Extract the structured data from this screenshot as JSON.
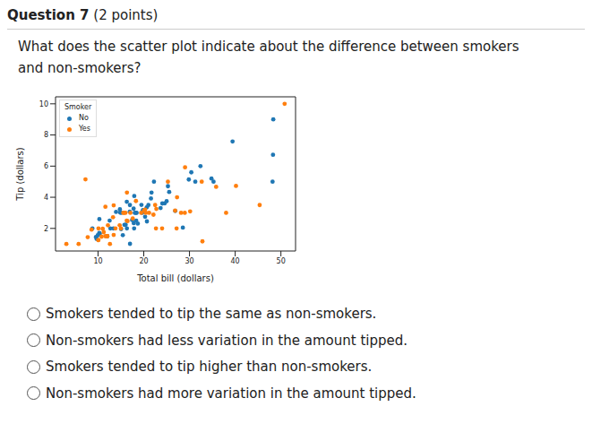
{
  "header": {
    "title": "Question 7",
    "points": "(2 points)"
  },
  "question": "What does the scatter plot indicate about the difference between smokers and non-smokers?",
  "options": [
    "Smokers tended to tip the same as non-smokers.",
    "Non-smokers had less variation in the amount tipped.",
    "Smokers tended to tip higher than non-smokers.",
    "Non-smokers had more variation in the amount tipped."
  ],
  "chart_data": {
    "type": "scatter",
    "x_label": "Total bill (dollars)",
    "y_label": "Tip (dollars)",
    "legend_title": "Smoker",
    "legend": "upper left",
    "xlim": [
      0.7,
      53.2
    ],
    "ylim": [
      0.55,
      10.45
    ],
    "xticks": [
      10,
      20,
      30,
      40,
      50
    ],
    "yticks": [
      2,
      4,
      6,
      8,
      10
    ],
    "series": [
      {
        "name": "No",
        "color": "#1f77b4",
        "marker": "circle",
        "x": [
          16.99,
          10.34,
          21.01,
          23.68,
          24.59,
          25.29,
          8.77,
          26.88,
          15.04,
          14.78,
          10.27,
          35.26,
          15.42,
          18.43,
          14.83,
          21.58,
          10.33,
          16.29,
          16.97,
          20.65,
          17.92,
          20.29,
          15.77,
          39.42,
          19.82,
          17.81,
          13.37,
          12.69,
          21.7,
          19.65,
          9.55,
          18.35,
          15.06,
          20.69,
          17.78,
          24.06,
          16.31,
          16.93,
          18.69,
          31.27,
          16.04,
          17.46,
          13.94,
          9.68,
          30.4,
          18.29,
          22.23,
          32.4,
          28.55,
          18.04,
          12.54,
          10.29,
          34.81,
          9.94,
          25.56,
          19.49,
          48.27,
          20.08,
          48.17,
          48.33,
          29.85,
          25.0,
          12.03,
          17.89
        ],
        "values": [
          1.01,
          1.66,
          3.5,
          3.31,
          3.61,
          4.71,
          2.0,
          3.12,
          1.96,
          3.23,
          1.71,
          5.0,
          1.57,
          3.0,
          3.02,
          3.92,
          1.67,
          3.71,
          3.5,
          3.35,
          4.08,
          2.75,
          2.23,
          7.58,
          3.18,
          2.34,
          2.0,
          2.0,
          4.3,
          3.0,
          1.45,
          2.5,
          3.0,
          2.45,
          3.27,
          3.6,
          2.0,
          3.07,
          2.31,
          5.0,
          2.24,
          2.54,
          3.06,
          1.32,
          5.6,
          3.0,
          5.0,
          6.0,
          2.05,
          3.0,
          2.5,
          2.6,
          5.2,
          1.56,
          4.34,
          3.51,
          6.73,
          3.15,
          5.0,
          9.0,
          5.14,
          3.75,
          1.5,
          2.0
        ]
      },
      {
        "name": "Yes",
        "color": "#ff7f0e",
        "marker": "circle",
        "x": [
          3.07,
          38.01,
          11.24,
          20.29,
          13.81,
          11.02,
          18.29,
          17.59,
          20.08,
          16.45,
          15.01,
          12.02,
          17.07,
          26.86,
          25.28,
          14.73,
          10.07,
          19.44,
          32.68,
          28.97,
          22.49,
          5.75,
          16.32,
          22.75,
          40.17,
          27.28,
          12.03,
          21.16,
          28.15,
          11.59,
          7.74,
          30.14,
          12.16,
          13.42,
          8.58,
          15.98,
          13.42,
          16.27,
          10.09,
          20.45,
          13.28,
          22.12,
          24.01,
          15.69,
          11.61,
          10.77,
          15.53,
          10.07,
          12.6,
          32.83,
          35.83,
          29.03,
          27.18,
          22.67,
          50.81,
          45.35,
          7.25
        ],
        "values": [
          1.0,
          3.0,
          1.76,
          3.21,
          2.0,
          1.98,
          3.76,
          2.64,
          3.15,
          2.47,
          2.0,
          1.5,
          3.0,
          3.14,
          5.0,
          2.2,
          1.25,
          3.0,
          5.0,
          3.0,
          3.5,
          1.0,
          4.3,
          3.25,
          4.73,
          4.0,
          1.5,
          3.0,
          3.0,
          1.5,
          1.44,
          3.09,
          2.2,
          3.48,
          1.92,
          3.0,
          1.58,
          2.5,
          2.0,
          3.0,
          2.72,
          2.88,
          2.0,
          3.0,
          3.39,
          1.47,
          3.0,
          1.25,
          1.0,
          1.17,
          4.67,
          5.92,
          2.0,
          2.0,
          10.0,
          3.5,
          5.15
        ]
      }
    ]
  }
}
